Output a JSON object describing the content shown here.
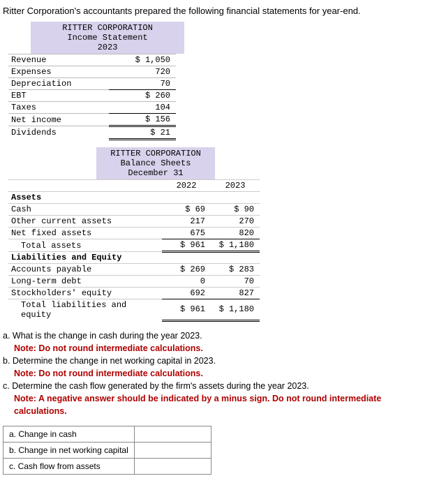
{
  "intro": "Ritter Corporation's accountants prepared the following financial statements for year-end.",
  "income_statement": {
    "title1": "RITTER CORPORATION",
    "title2": "Income Statement",
    "title3": "2023",
    "rows": [
      {
        "label": "Revenue",
        "value": "$ 1,050"
      },
      {
        "label": "Expenses",
        "value": "720"
      },
      {
        "label": "Depreciation",
        "value": "70"
      },
      {
        "label": "EBT",
        "value": "$ 260"
      },
      {
        "label": "Taxes",
        "value": "104"
      },
      {
        "label": "Net income",
        "value": "$ 156"
      },
      {
        "label": "Dividends",
        "value": "$ 21"
      }
    ]
  },
  "balance_sheet": {
    "title1": "RITTER CORPORATION",
    "title2": "Balance Sheets",
    "title3": "December 31",
    "year1": "2022",
    "year2": "2023",
    "sections": [
      {
        "header": "Assets",
        "rows": [
          {
            "label": "Cash",
            "v1": "$ 69",
            "v2": "$ 90"
          },
          {
            "label": "Other current assets",
            "v1": "217",
            "v2": "270"
          },
          {
            "label": "Net fixed assets",
            "v1": "675",
            "v2": "820"
          }
        ],
        "total": {
          "label": "Total assets",
          "v1": "$ 961",
          "v2": "$ 1,180"
        }
      },
      {
        "header": "Liabilities and Equity",
        "rows": [
          {
            "label": "Accounts payable",
            "v1": "$ 269",
            "v2": "$ 283"
          },
          {
            "label": "Long-term debt",
            "v1": "0",
            "v2": "70"
          },
          {
            "label": "Stockholders' equity",
            "v1": "692",
            "v2": "827"
          }
        ],
        "total": {
          "label": "Total liabilities and equity",
          "v1": "$ 961",
          "v2": "$ 1,180"
        }
      }
    ]
  },
  "questions": {
    "a": "a. What is the change in cash during the year 2023.",
    "a_note": "Note: Do not round intermediate calculations.",
    "b": "b. Determine the change in net working capital in 2023.",
    "b_note": "Note: Do not round intermediate calculations.",
    "c": "c. Determine the cash flow generated by the firm's assets during the year 2023.",
    "c_note": "Note: A negative answer should be indicated by a minus sign. Do not round intermediate calculations."
  },
  "answers": {
    "a_label": "a. Change in cash",
    "b_label": "b. Change in net working capital",
    "c_label": "c. Cash flow from assets"
  }
}
